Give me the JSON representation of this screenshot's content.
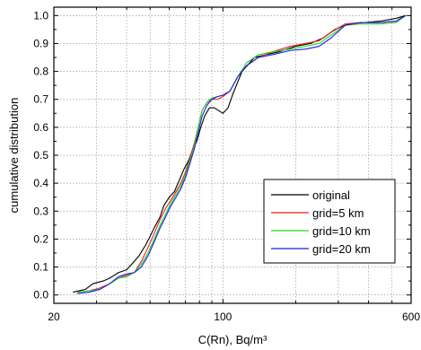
{
  "chart_data": {
    "type": "line",
    "xlabel": "C(Rn), Bq/m³",
    "ylabel": "cumulative distribution",
    "x_scale": "log",
    "xlim": [
      20,
      600
    ],
    "ylim": [
      -0.03,
      1.03
    ],
    "x_ticks": [
      20,
      100,
      600
    ],
    "y_ticks": [
      0.0,
      0.1,
      0.2,
      0.3,
      0.4,
      0.5,
      0.6,
      0.7,
      0.8,
      0.9,
      1.0
    ],
    "y_tick_labels": [
      "0.0",
      "0.1",
      "0.2",
      "0.3",
      "0.4",
      "0.5",
      "0.6",
      "0.7",
      "0.8",
      "0.9",
      "1.0"
    ],
    "grid": true,
    "legend_position": "bottom-right",
    "series": [
      {
        "name": "original",
        "color": "#000000",
        "points": [
          [
            24,
            0.01
          ],
          [
            27,
            0.02
          ],
          [
            29,
            0.04
          ],
          [
            32,
            0.05
          ],
          [
            34,
            0.06
          ],
          [
            37,
            0.08
          ],
          [
            40,
            0.09
          ],
          [
            42,
            0.11
          ],
          [
            45,
            0.14
          ],
          [
            48,
            0.18
          ],
          [
            50,
            0.21
          ],
          [
            52,
            0.24
          ],
          [
            55,
            0.28
          ],
          [
            57,
            0.32
          ],
          [
            60,
            0.35
          ],
          [
            63,
            0.37
          ],
          [
            66,
            0.41
          ],
          [
            69,
            0.45
          ],
          [
            72,
            0.48
          ],
          [
            75,
            0.52
          ],
          [
            78,
            0.55
          ],
          [
            81,
            0.6
          ],
          [
            84,
            0.64
          ],
          [
            88,
            0.67
          ],
          [
            92,
            0.67
          ],
          [
            96,
            0.66
          ],
          [
            100,
            0.65
          ],
          [
            105,
            0.67
          ],
          [
            110,
            0.72
          ],
          [
            120,
            0.8
          ],
          [
            135,
            0.85
          ],
          [
            150,
            0.86
          ],
          [
            170,
            0.87
          ],
          [
            200,
            0.89
          ],
          [
            230,
            0.9
          ],
          [
            260,
            0.92
          ],
          [
            290,
            0.95
          ],
          [
            330,
            0.97
          ],
          [
            380,
            0.975
          ],
          [
            450,
            0.98
          ],
          [
            520,
            0.99
          ],
          [
            570,
            1.0
          ]
        ]
      },
      {
        "name": "grid=5 km",
        "color": "#e8211b",
        "points": [
          [
            25,
            0.01
          ],
          [
            28,
            0.015
          ],
          [
            31,
            0.025
          ],
          [
            34,
            0.04
          ],
          [
            37,
            0.06
          ],
          [
            40,
            0.07
          ],
          [
            43,
            0.08
          ],
          [
            46,
            0.12
          ],
          [
            49,
            0.17
          ],
          [
            52,
            0.22
          ],
          [
            55,
            0.27
          ],
          [
            58,
            0.31
          ],
          [
            61,
            0.34
          ],
          [
            64,
            0.37
          ],
          [
            67,
            0.4
          ],
          [
            70,
            0.44
          ],
          [
            73,
            0.49
          ],
          [
            76,
            0.54
          ],
          [
            79,
            0.6
          ],
          [
            82,
            0.66
          ],
          [
            86,
            0.69
          ],
          [
            90,
            0.7
          ],
          [
            95,
            0.7
          ],
          [
            100,
            0.71
          ],
          [
            107,
            0.73
          ],
          [
            115,
            0.78
          ],
          [
            125,
            0.82
          ],
          [
            140,
            0.85
          ],
          [
            160,
            0.87
          ],
          [
            190,
            0.89
          ],
          [
            220,
            0.9
          ],
          [
            250,
            0.91
          ],
          [
            280,
            0.94
          ],
          [
            320,
            0.97
          ],
          [
            370,
            0.975
          ],
          [
            450,
            0.975
          ],
          [
            520,
            0.98
          ],
          [
            570,
            1.0
          ]
        ]
      },
      {
        "name": "grid=10 km",
        "color": "#22dd22",
        "points": [
          [
            25,
            0.01
          ],
          [
            28,
            0.015
          ],
          [
            31,
            0.02
          ],
          [
            34,
            0.04
          ],
          [
            37,
            0.06
          ],
          [
            40,
            0.065
          ],
          [
            43,
            0.08
          ],
          [
            46,
            0.11
          ],
          [
            49,
            0.15
          ],
          [
            52,
            0.2
          ],
          [
            55,
            0.25
          ],
          [
            58,
            0.29
          ],
          [
            61,
            0.33
          ],
          [
            64,
            0.36
          ],
          [
            67,
            0.39
          ],
          [
            70,
            0.43
          ],
          [
            73,
            0.48
          ],
          [
            76,
            0.53
          ],
          [
            79,
            0.6
          ],
          [
            82,
            0.66
          ],
          [
            86,
            0.69
          ],
          [
            90,
            0.705
          ],
          [
            95,
            0.71
          ],
          [
            100,
            0.715
          ],
          [
            107,
            0.73
          ],
          [
            115,
            0.78
          ],
          [
            125,
            0.83
          ],
          [
            140,
            0.86
          ],
          [
            160,
            0.87
          ],
          [
            190,
            0.88
          ],
          [
            220,
            0.89
          ],
          [
            250,
            0.9
          ],
          [
            280,
            0.93
          ],
          [
            320,
            0.965
          ],
          [
            370,
            0.97
          ],
          [
            450,
            0.97
          ],
          [
            520,
            0.975
          ],
          [
            570,
            1.0
          ]
        ]
      },
      {
        "name": "grid=20 km",
        "color": "#1a1aee",
        "points": [
          [
            25,
            0.005
          ],
          [
            28,
            0.01
          ],
          [
            31,
            0.02
          ],
          [
            34,
            0.04
          ],
          [
            37,
            0.065
          ],
          [
            40,
            0.075
          ],
          [
            43,
            0.08
          ],
          [
            46,
            0.1
          ],
          [
            49,
            0.14
          ],
          [
            52,
            0.19
          ],
          [
            55,
            0.24
          ],
          [
            58,
            0.28
          ],
          [
            61,
            0.32
          ],
          [
            64,
            0.35
          ],
          [
            67,
            0.38
          ],
          [
            70,
            0.42
          ],
          [
            73,
            0.47
          ],
          [
            76,
            0.52
          ],
          [
            79,
            0.58
          ],
          [
            82,
            0.64
          ],
          [
            86,
            0.68
          ],
          [
            90,
            0.7
          ],
          [
            95,
            0.71
          ],
          [
            100,
            0.715
          ],
          [
            107,
            0.73
          ],
          [
            115,
            0.78
          ],
          [
            125,
            0.82
          ],
          [
            140,
            0.85
          ],
          [
            160,
            0.86
          ],
          [
            190,
            0.875
          ],
          [
            220,
            0.88
          ],
          [
            250,
            0.89
          ],
          [
            280,
            0.92
          ],
          [
            320,
            0.965
          ],
          [
            370,
            0.975
          ],
          [
            450,
            0.975
          ],
          [
            520,
            0.98
          ],
          [
            570,
            1.0
          ]
        ]
      }
    ]
  }
}
